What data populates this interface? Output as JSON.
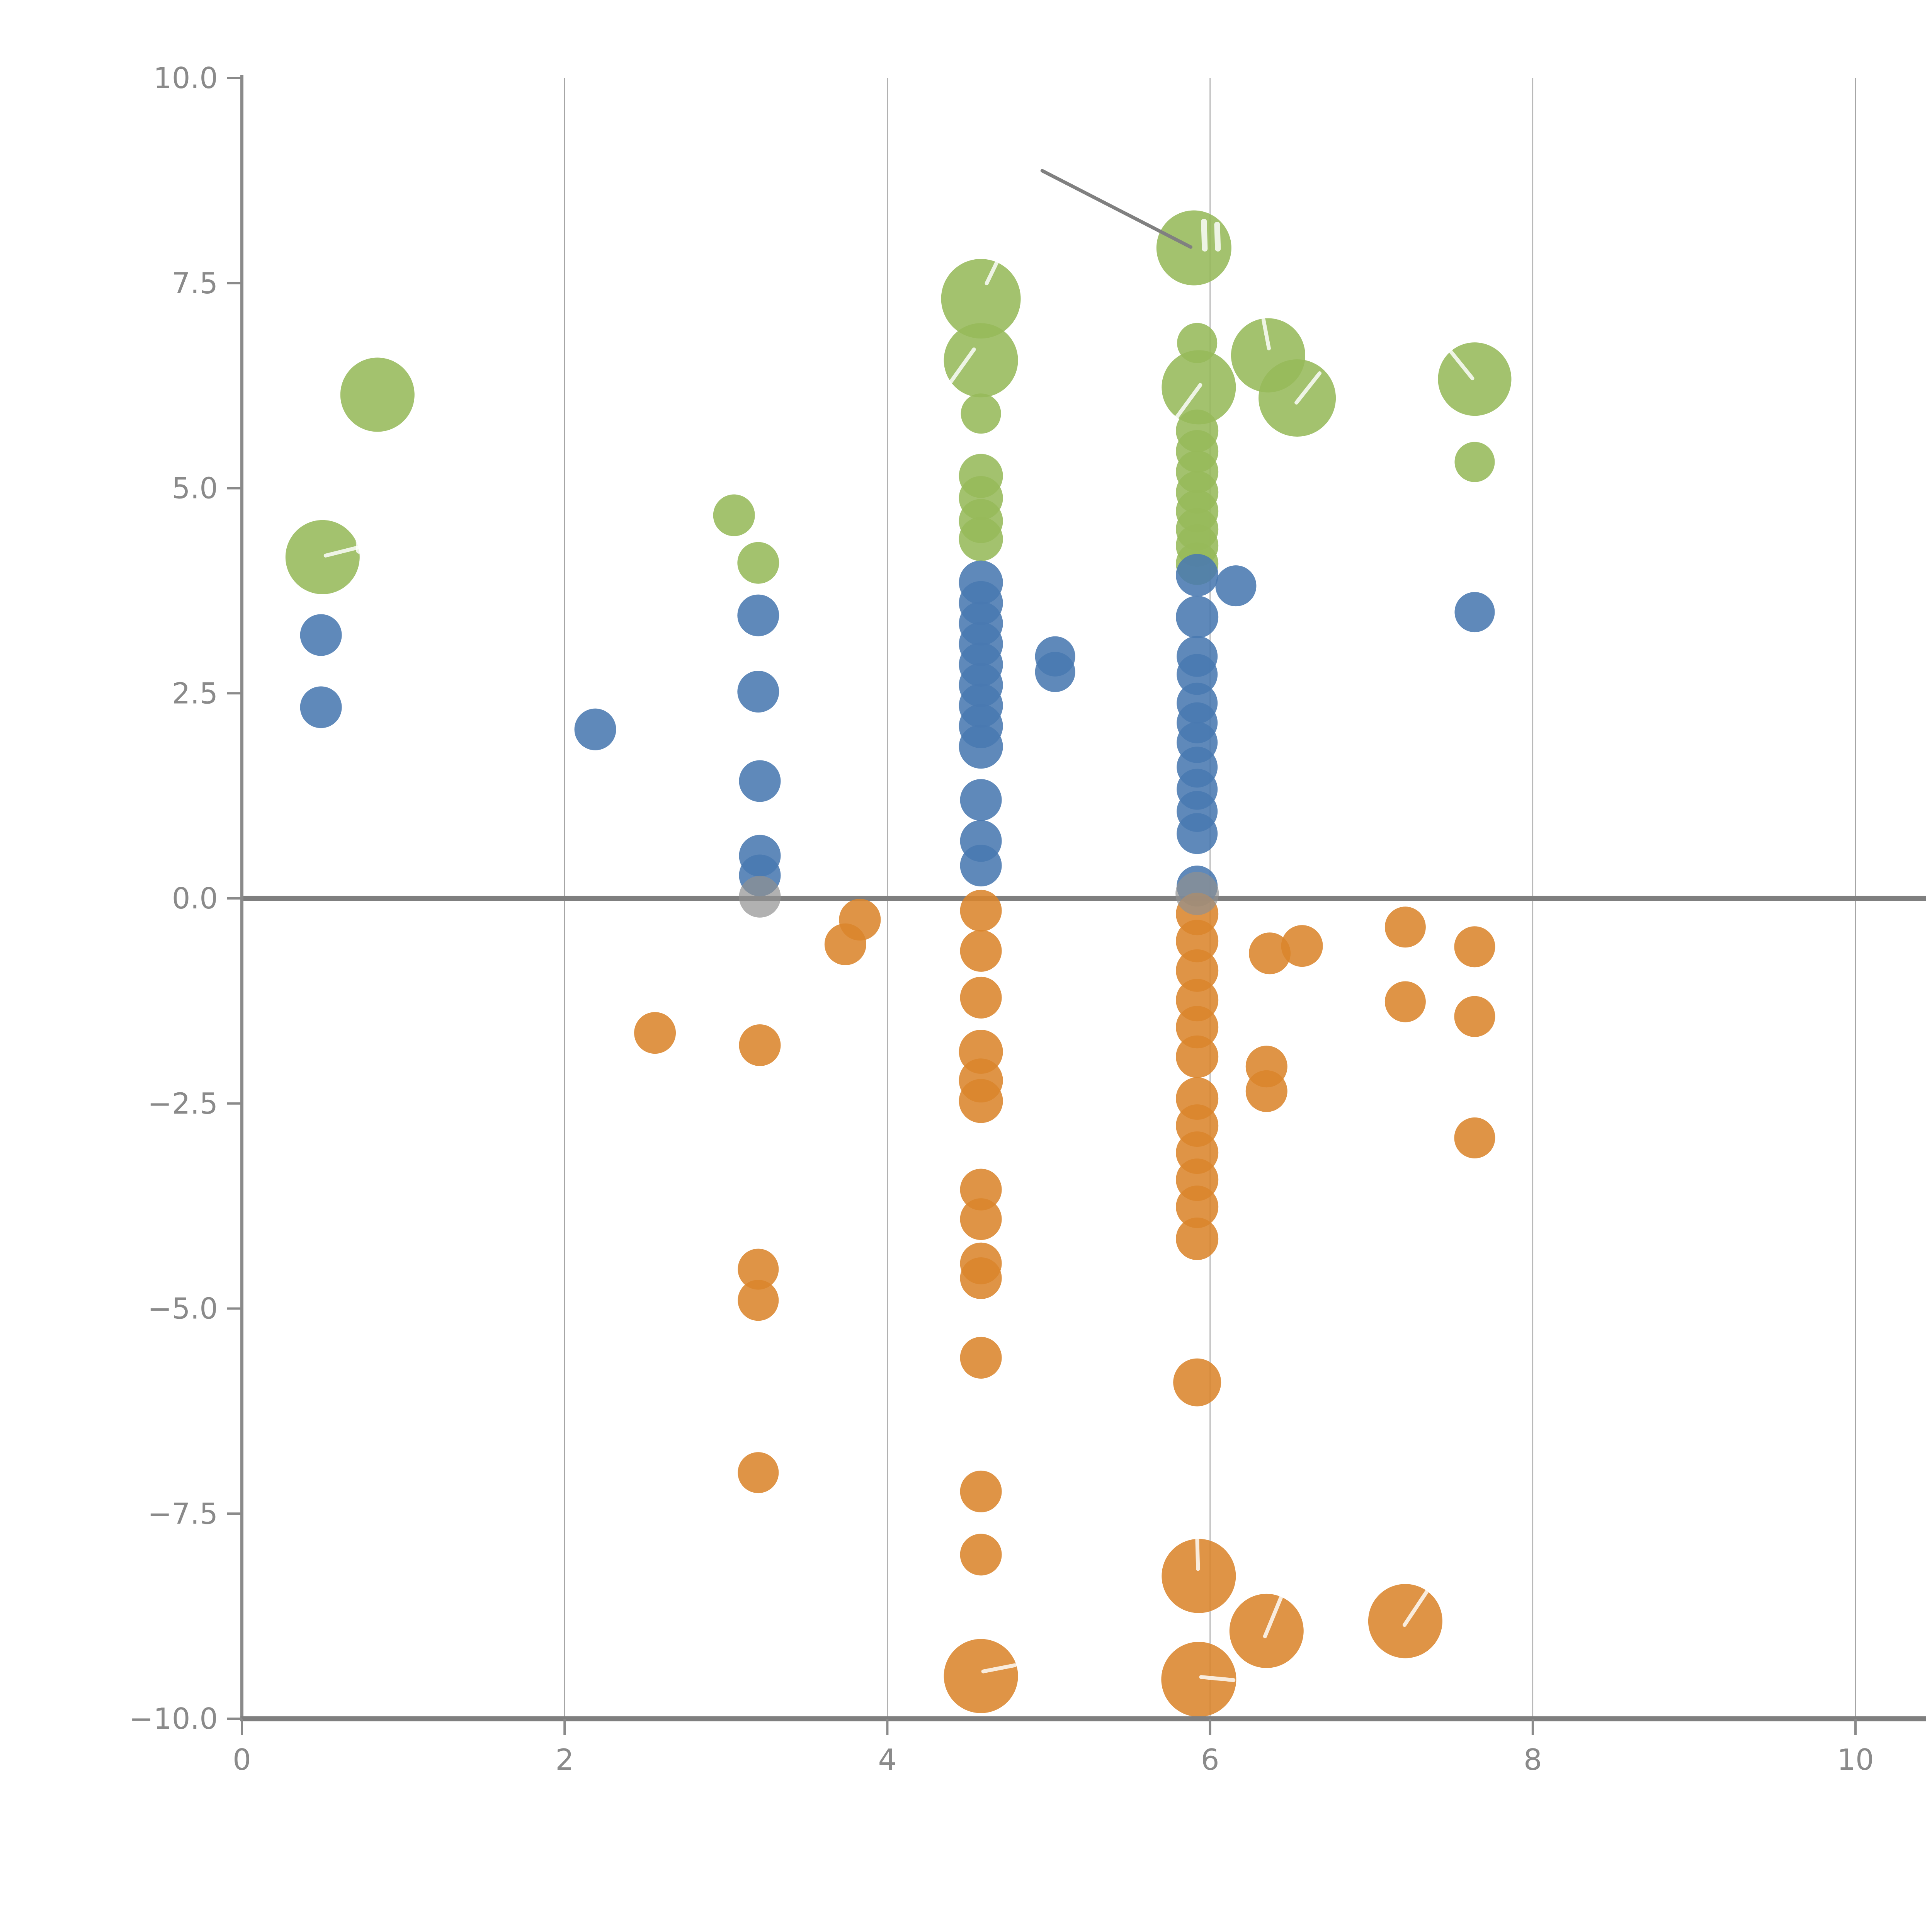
{
  "figure": {
    "background": "#ffffff",
    "tick_label_color": "#8a8a8a",
    "spine_color": "#8a8a8a",
    "grid_color": "#a6a6a6",
    "zero_line_color": "#7f7f7f",
    "annotation_color": "#808080",
    "white_mark_color": "#ffffff"
  },
  "chart_data": {
    "type": "scatter",
    "title": "",
    "xlabel": "",
    "ylabel": "",
    "xlim": [
      0,
      10
    ],
    "ylim": [
      -10,
      10
    ],
    "grid": "vertical-only",
    "legend": "none",
    "x_ticks": {
      "values": [
        0,
        2,
        4,
        6,
        8,
        10
      ],
      "labels": [
        "0",
        "2",
        "4",
        "6",
        "8",
        "10"
      ]
    },
    "y_ticks": {
      "values": [
        10,
        7.5,
        5,
        2.5,
        0,
        -2.5,
        -5,
        -7.5,
        -10
      ],
      "labels": [
        "10.0",
        "7.5",
        "5.0",
        "2.5",
        "0.0",
        "−2.5",
        "−5.0",
        "−7.5",
        "−10.0"
      ]
    },
    "grid_x_values": [
      2,
      4,
      6,
      8,
      10
    ],
    "zero_line_y": 0,
    "annotation_line": {
      "x1": 4.96,
      "y1": 8.87,
      "x2": 5.88,
      "y2": 7.94,
      "color": "#808080",
      "width": 9
    },
    "series": [
      {
        "name": "green",
        "color": "#96BA5A",
        "opacity": 0.88,
        "points": [
          {
            "x": 0.84,
            "y": 6.14,
            "r": 96
          },
          {
            "x": 0.5,
            "y": 4.16,
            "r": 96
          },
          {
            "x": 3.05,
            "y": 4.67,
            "r": 54
          },
          {
            "x": 3.2,
            "y": 4.09,
            "r": 54
          },
          {
            "x": 4.58,
            "y": 7.31,
            "r": 103
          },
          {
            "x": 4.58,
            "y": 6.56,
            "r": 96
          },
          {
            "x": 4.58,
            "y": 5.91,
            "r": 52
          },
          {
            "x": 4.58,
            "y": 5.15,
            "r": 57
          },
          {
            "x": 4.58,
            "y": 4.88,
            "r": 57
          },
          {
            "x": 4.58,
            "y": 4.6,
            "r": 57
          },
          {
            "x": 4.58,
            "y": 4.38,
            "r": 57
          },
          {
            "x": 5.9,
            "y": 7.93,
            "r": 97
          },
          {
            "x": 5.92,
            "y": 6.77,
            "r": 52
          },
          {
            "x": 5.93,
            "y": 6.23,
            "r": 96
          },
          {
            "x": 5.92,
            "y": 5.7,
            "r": 55
          },
          {
            "x": 5.92,
            "y": 5.45,
            "r": 55
          },
          {
            "x": 5.92,
            "y": 5.2,
            "r": 55
          },
          {
            "x": 5.92,
            "y": 4.95,
            "r": 55
          },
          {
            "x": 5.92,
            "y": 4.72,
            "r": 55
          },
          {
            "x": 5.92,
            "y": 4.5,
            "r": 55
          },
          {
            "x": 5.92,
            "y": 4.3,
            "r": 55
          },
          {
            "x": 5.92,
            "y": 4.08,
            "r": 55
          },
          {
            "x": 6.36,
            "y": 6.62,
            "r": 96
          },
          {
            "x": 6.54,
            "y": 6.1,
            "r": 100
          },
          {
            "x": 7.64,
            "y": 6.33,
            "r": 95
          },
          {
            "x": 7.64,
            "y": 5.32,
            "r": 52
          }
        ]
      },
      {
        "name": "blue",
        "color": "#4979B0",
        "opacity": 0.88,
        "points": [
          {
            "x": 0.49,
            "y": 3.21,
            "r": 54
          },
          {
            "x": 0.49,
            "y": 2.33,
            "r": 54
          },
          {
            "x": 2.19,
            "y": 2.06,
            "r": 54
          },
          {
            "x": 3.2,
            "y": 3.45,
            "r": 54
          },
          {
            "x": 3.2,
            "y": 2.52,
            "r": 54
          },
          {
            "x": 3.21,
            "y": 1.43,
            "r": 54
          },
          {
            "x": 3.21,
            "y": 0.52,
            "r": 54
          },
          {
            "x": 3.21,
            "y": 0.28,
            "r": 54
          },
          {
            "x": 4.58,
            "y": 3.85,
            "r": 57
          },
          {
            "x": 4.58,
            "y": 3.6,
            "r": 57
          },
          {
            "x": 4.58,
            "y": 3.35,
            "r": 57
          },
          {
            "x": 4.58,
            "y": 3.1,
            "r": 57
          },
          {
            "x": 4.58,
            "y": 2.85,
            "r": 57
          },
          {
            "x": 4.58,
            "y": 2.6,
            "r": 57
          },
          {
            "x": 4.58,
            "y": 2.35,
            "r": 57
          },
          {
            "x": 4.58,
            "y": 2.1,
            "r": 57
          },
          {
            "x": 4.58,
            "y": 1.85,
            "r": 57
          },
          {
            "x": 4.58,
            "y": 1.2,
            "r": 54
          },
          {
            "x": 4.58,
            "y": 0.7,
            "r": 54
          },
          {
            "x": 4.58,
            "y": 0.4,
            "r": 54
          },
          {
            "x": 5.04,
            "y": 2.95,
            "r": 52
          },
          {
            "x": 5.04,
            "y": 2.76,
            "r": 52
          },
          {
            "x": 5.92,
            "y": 3.94,
            "r": 55
          },
          {
            "x": 6.16,
            "y": 3.81,
            "r": 53
          },
          {
            "x": 5.92,
            "y": 3.43,
            "r": 55
          },
          {
            "x": 5.92,
            "y": 2.95,
            "r": 53
          },
          {
            "x": 5.92,
            "y": 2.73,
            "r": 53
          },
          {
            "x": 5.92,
            "y": 2.38,
            "r": 53
          },
          {
            "x": 5.92,
            "y": 2.14,
            "r": 53
          },
          {
            "x": 5.92,
            "y": 1.9,
            "r": 53
          },
          {
            "x": 5.92,
            "y": 1.6,
            "r": 53
          },
          {
            "x": 5.92,
            "y": 1.33,
            "r": 53
          },
          {
            "x": 5.92,
            "y": 1.06,
            "r": 53
          },
          {
            "x": 5.92,
            "y": 0.79,
            "r": 53
          },
          {
            "x": 5.92,
            "y": 0.15,
            "r": 53
          },
          {
            "x": 7.64,
            "y": 3.49,
            "r": 52
          }
        ]
      },
      {
        "name": "orange",
        "color": "#DB852C",
        "opacity": 0.88,
        "points": [
          {
            "x": 2.56,
            "y": -1.64,
            "r": 54
          },
          {
            "x": 3.21,
            "y": -1.79,
            "r": 54
          },
          {
            "x": 3.83,
            "y": -0.26,
            "r": 54
          },
          {
            "x": 3.74,
            "y": -0.56,
            "r": 54
          },
          {
            "x": 3.2,
            "y": -4.52,
            "r": 53
          },
          {
            "x": 3.2,
            "y": -4.9,
            "r": 53
          },
          {
            "x": 3.2,
            "y": -7.0,
            "r": 53
          },
          {
            "x": 4.58,
            "y": -0.15,
            "r": 54
          },
          {
            "x": 4.58,
            "y": -0.64,
            "r": 54
          },
          {
            "x": 4.58,
            "y": -1.21,
            "r": 54
          },
          {
            "x": 4.58,
            "y": -1.87,
            "r": 57
          },
          {
            "x": 4.58,
            "y": -2.22,
            "r": 57
          },
          {
            "x": 4.58,
            "y": -2.47,
            "r": 57
          },
          {
            "x": 4.58,
            "y": -3.55,
            "r": 54
          },
          {
            "x": 4.58,
            "y": -3.91,
            "r": 54
          },
          {
            "x": 4.58,
            "y": -4.45,
            "r": 54
          },
          {
            "x": 4.58,
            "y": -4.63,
            "r": 54
          },
          {
            "x": 4.58,
            "y": -5.6,
            "r": 54
          },
          {
            "x": 4.58,
            "y": -7.23,
            "r": 54
          },
          {
            "x": 4.58,
            "y": -8.0,
            "r": 54
          },
          {
            "x": 4.58,
            "y": -9.48,
            "r": 96
          },
          {
            "x": 5.92,
            "y": -0.19,
            "r": 55
          },
          {
            "x": 5.92,
            "y": -0.52,
            "r": 55
          },
          {
            "x": 5.92,
            "y": -0.88,
            "r": 55
          },
          {
            "x": 5.92,
            "y": -1.24,
            "r": 55
          },
          {
            "x": 5.92,
            "y": -1.57,
            "r": 55
          },
          {
            "x": 5.92,
            "y": -1.93,
            "r": 55
          },
          {
            "x": 5.92,
            "y": -2.44,
            "r": 55
          },
          {
            "x": 5.92,
            "y": -2.77,
            "r": 55
          },
          {
            "x": 5.92,
            "y": -3.1,
            "r": 55
          },
          {
            "x": 5.92,
            "y": -3.43,
            "r": 55
          },
          {
            "x": 5.92,
            "y": -3.76,
            "r": 55
          },
          {
            "x": 5.92,
            "y": -4.15,
            "r": 55
          },
          {
            "x": 5.92,
            "y": -5.9,
            "r": 62
          },
          {
            "x": 5.93,
            "y": -8.26,
            "r": 96
          },
          {
            "x": 5.93,
            "y": -9.52,
            "r": 97
          },
          {
            "x": 6.35,
            "y": -8.93,
            "r": 96
          },
          {
            "x": 7.21,
            "y": -8.81,
            "r": 96
          },
          {
            "x": 6.37,
            "y": -0.67,
            "r": 54
          },
          {
            "x": 6.57,
            "y": -0.58,
            "r": 54
          },
          {
            "x": 6.35,
            "y": -2.05,
            "r": 54
          },
          {
            "x": 6.35,
            "y": -2.35,
            "r": 54
          },
          {
            "x": 7.21,
            "y": -0.35,
            "r": 53
          },
          {
            "x": 7.64,
            "y": -0.59,
            "r": 53
          },
          {
            "x": 7.21,
            "y": -1.26,
            "r": 53
          },
          {
            "x": 7.64,
            "y": -1.44,
            "r": 53
          },
          {
            "x": 7.64,
            "y": -2.92,
            "r": 53
          }
        ]
      },
      {
        "name": "gray",
        "color": "#909090",
        "opacity": 0.7,
        "points": [
          {
            "x": 3.21,
            "y": 0.02,
            "r": 54
          },
          {
            "x": 5.92,
            "y": 0.06,
            "r": 56
          }
        ]
      }
    ],
    "white_marks": [
      {
        "x": 4.58,
        "y": 7.31,
        "dx1": 15,
        "dy1": -40,
        "dx2": 72,
        "dy2": -158,
        "w": 10
      },
      {
        "x": 4.58,
        "y": 6.56,
        "dx1": -88,
        "dy1": 70,
        "dx2": -18,
        "dy2": -28,
        "w": 10
      },
      {
        "x": 5.9,
        "y": 7.93,
        "dx1": 26,
        "dy1": -68,
        "dx2": 28,
        "dy2": 2,
        "w": 15
      },
      {
        "x": 5.9,
        "y": 7.93,
        "dx1": 60,
        "dy1": -60,
        "dx2": 62,
        "dy2": 2,
        "w": 15
      },
      {
        "x": 5.93,
        "y": 6.23,
        "dx1": -62,
        "dy1": 84,
        "dx2": 4,
        "dy2": -6,
        "w": 10
      },
      {
        "x": 6.36,
        "y": 6.62,
        "dx1": -12,
        "dy1": -92,
        "dx2": 2,
        "dy2": -18,
        "w": 10
      },
      {
        "x": 6.54,
        "y": 6.1,
        "dx1": 58,
        "dy1": -64,
        "dx2": -2,
        "dy2": 12,
        "w": 10
      },
      {
        "x": 7.64,
        "y": 6.33,
        "dx1": -72,
        "dy1": -84,
        "dx2": -6,
        "dy2": -2,
        "w": 10
      },
      {
        "x": 0.5,
        "y": 4.16,
        "dx1": 8,
        "dy1": -4,
        "dx2": 96,
        "dy2": -26,
        "w": 10
      },
      {
        "x": 0.5,
        "y": 4.16,
        "dx1": 92,
        "dy1": -62,
        "dx2": 94,
        "dy2": -16,
        "w": 14
      },
      {
        "x": 4.58,
        "y": -9.48,
        "dx1": 6,
        "dy1": -12,
        "dx2": 88,
        "dy2": -28,
        "w": 10
      },
      {
        "x": 5.93,
        "y": -8.26,
        "dx1": -4,
        "dy1": -96,
        "dx2": -2,
        "dy2": -18,
        "w": 10
      },
      {
        "x": 5.93,
        "y": -9.52,
        "dx1": 6,
        "dy1": -6,
        "dx2": 90,
        "dy2": 2,
        "w": 10
      },
      {
        "x": 6.35,
        "y": -8.93,
        "dx1": 38,
        "dy1": -88,
        "dx2": -4,
        "dy2": 14,
        "w": 10
      },
      {
        "x": 7.21,
        "y": -8.81,
        "dx1": 58,
        "dy1": -80,
        "dx2": -2,
        "dy2": 10,
        "w": 10
      }
    ]
  }
}
